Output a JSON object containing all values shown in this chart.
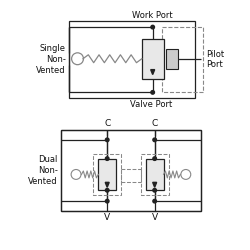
{
  "bg_color": "#ffffff",
  "line_color": "#222222",
  "dashed_color": "#888888",
  "spring_color": "#888888",
  "text_color": "#111111",
  "fig_w": 2.5,
  "fig_h": 2.5,
  "dpi": 100,
  "single_label": "Single\nNon-\nVented",
  "dual_label": "Dual\nNon-\nVented",
  "work_port_label": "Work Port",
  "valve_port_label": "Valve Port",
  "pilot_port_label": "Pilot\nPort",
  "c_label": "C",
  "v_label": "V",
  "font_size": 6.0
}
